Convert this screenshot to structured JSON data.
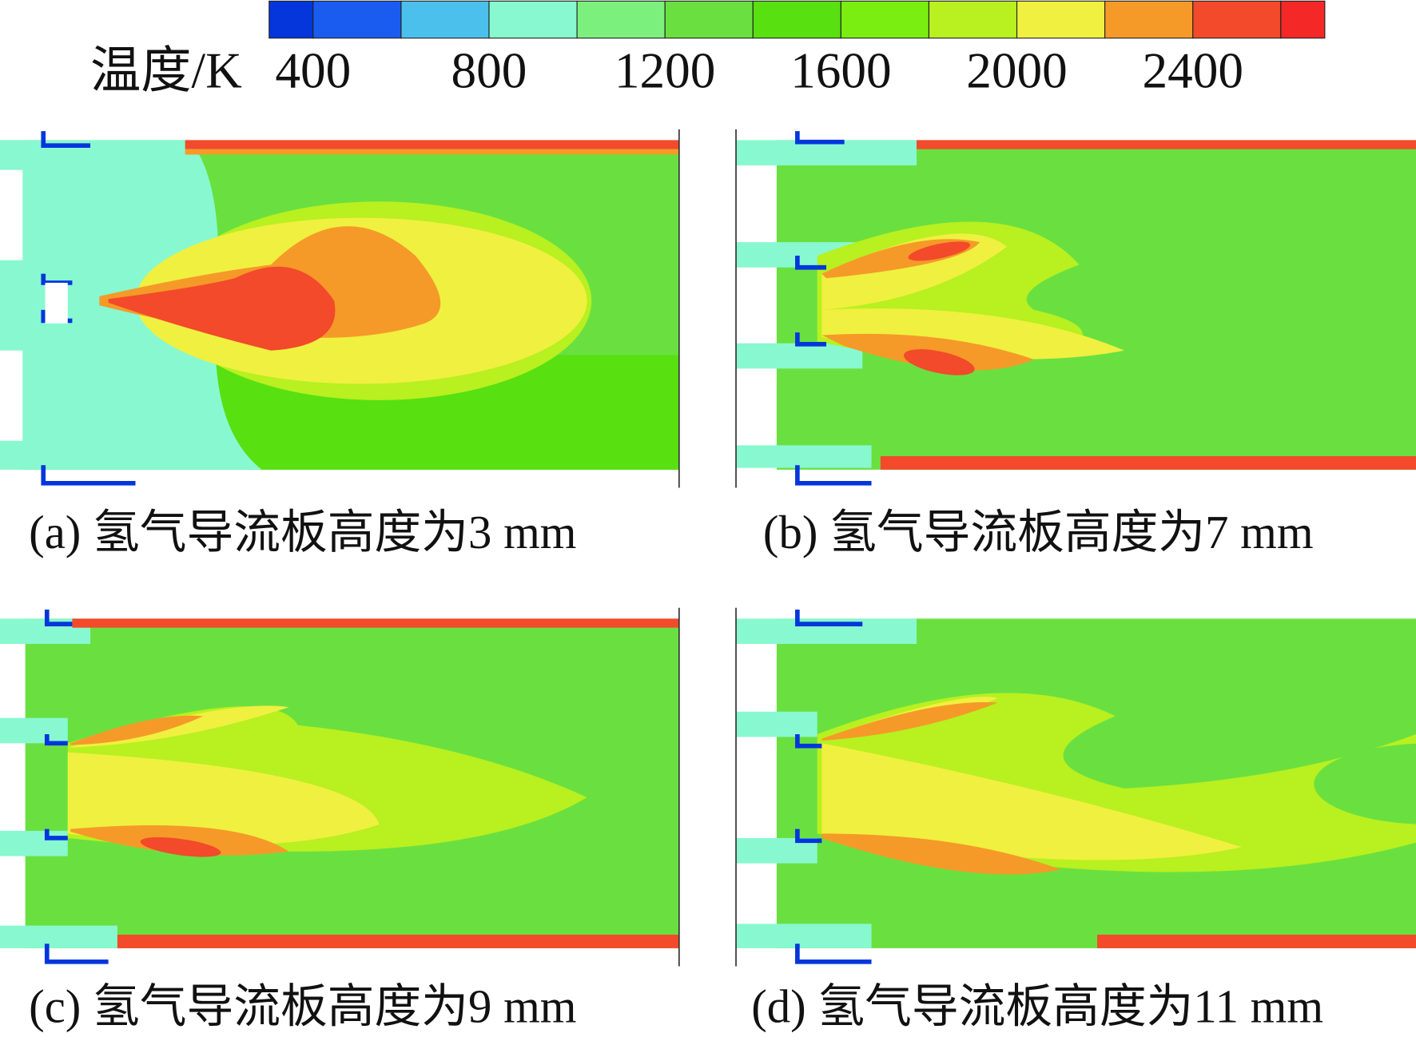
{
  "colorbar": {
    "label": "温度/K",
    "range": [
      300,
      2700
    ],
    "ticks": [
      400,
      800,
      1200,
      1600,
      2000,
      2400
    ],
    "colors": [
      "#0436dc",
      "#1a5cf0",
      "#4cc0ec",
      "#88f8d0",
      "#7cf07c",
      "#6ae040",
      "#58e010",
      "#7aee10",
      "#b8f020",
      "#f0f040",
      "#f59a28",
      "#f24a2a",
      "#f52828"
    ]
  },
  "panels": [
    {
      "caption": "(a) 氢气导流板高度为3 mm"
    },
    {
      "caption": "(b) 氢气导流板高度为7 mm"
    },
    {
      "caption": "(c) 氢气导流板高度为9 mm"
    },
    {
      "caption": "(d) 氢气导流板高度为11 mm"
    }
  ]
}
